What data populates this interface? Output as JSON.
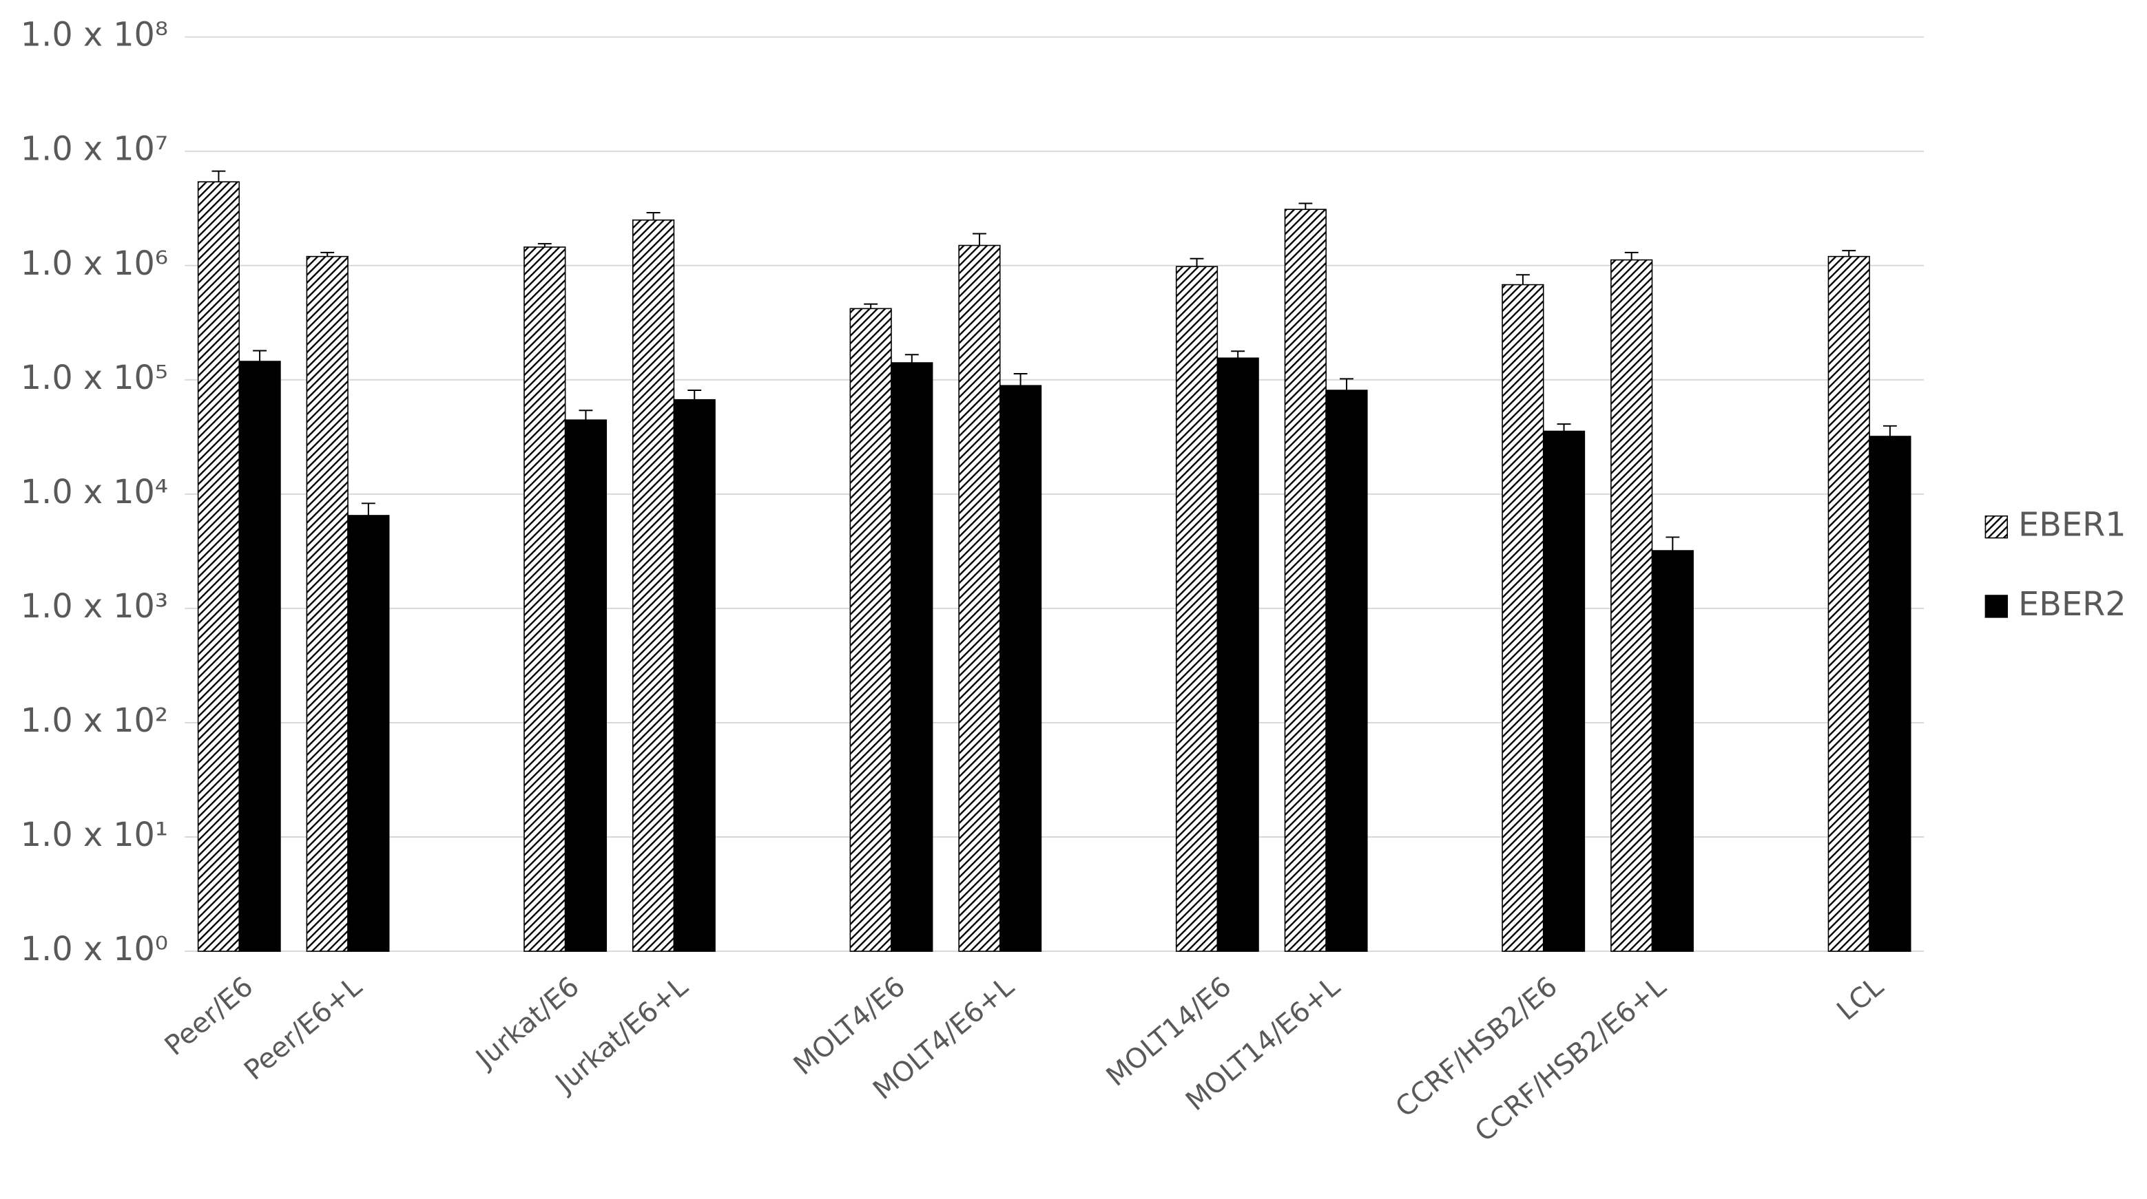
{
  "chart_data": {
    "type": "bar",
    "log_scale": true,
    "grid": true,
    "legend": "right",
    "categories": [
      "Peer/E6",
      "Peer/E6+L",
      null,
      "Jurkat/E6",
      "Jurkat/E6+L",
      null,
      "MOLT4/E6",
      "MOLT4/E6+L",
      null,
      "MOLT14/E6",
      "MOLT14/E6+L",
      null,
      "CCRF/HSB2/E6",
      "CCRF/HSB2/E6+L",
      null,
      "LCL"
    ],
    "series": [
      {
        "name": "EBER1",
        "color": "#000000",
        "pattern": "hatch",
        "values": [
          5400000,
          1200000,
          null,
          1450000,
          2500000,
          null,
          420000,
          1500000,
          null,
          980000,
          3100000,
          null,
          680000,
          1120000,
          null,
          1200000
        ],
        "errors": [
          1300000,
          100000,
          null,
          100000,
          400000,
          null,
          40000,
          400000,
          null,
          170000,
          400000,
          null,
          150000,
          180000,
          null,
          150000
        ]
      },
      {
        "name": "EBER2",
        "color": "#000000",
        "pattern": "solid",
        "values": [
          145000,
          6500,
          null,
          44500,
          67000,
          null,
          141000,
          89000,
          null,
          155000,
          81000,
          null,
          35500,
          3200,
          null,
          32000
        ],
        "errors": [
          35000,
          1800,
          null,
          9500,
          14000,
          null,
          25000,
          24000,
          null,
          23000,
          21000,
          null,
          5500,
          1000,
          null,
          7500
        ]
      }
    ],
    "ylim": [
      1,
      100000000
    ],
    "yticks": [
      {
        "value": 1,
        "label": "1.0 x 10⁰"
      },
      {
        "value": 10,
        "label": "1.0 x 10¹"
      },
      {
        "value": 100,
        "label": "1.0 x 10²"
      },
      {
        "value": 1000,
        "label": "1.0 x 10³"
      },
      {
        "value": 10000,
        "label": "1.0 x 10⁴"
      },
      {
        "value": 100000,
        "label": "1.0 x 10⁵"
      },
      {
        "value": 1000000,
        "label": "1.0 x 10⁶"
      },
      {
        "value": 10000000,
        "label": "1.0 x 10⁷"
      },
      {
        "value": 100000000,
        "label": "1.0 x 10⁸"
      }
    ]
  }
}
